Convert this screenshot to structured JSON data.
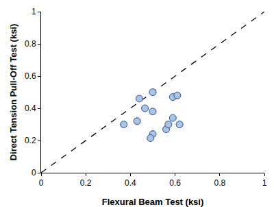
{
  "chart_data": {
    "type": "scatter",
    "xlabel": "Flexural Beam Test (ksi)",
    "ylabel": "Direct Tension Pull-Off Test (ksi)",
    "xlim": [
      0,
      1
    ],
    "ylim": [
      0,
      1
    ],
    "xticks": [
      0,
      0.2,
      0.4,
      0.6,
      0.8,
      1
    ],
    "yticks": [
      0,
      0.2,
      0.4,
      0.6,
      0.8,
      1
    ],
    "grid": false,
    "series": [
      {
        "type": "line",
        "color": "#000000",
        "line_style": "dashed",
        "x": [
          0,
          1
        ],
        "values": [
          0,
          1
        ]
      },
      {
        "type": "scatter",
        "color": "#a9c4eb",
        "marker": "circle",
        "x": [
          0.37,
          0.43,
          0.44,
          0.465,
          0.5,
          0.5,
          0.5,
          0.49,
          0.56,
          0.57,
          0.59,
          0.59,
          0.61,
          0.62
        ],
        "values": [
          0.3,
          0.32,
          0.46,
          0.4,
          0.38,
          0.5,
          0.24,
          0.215,
          0.27,
          0.3,
          0.34,
          0.47,
          0.48,
          0.3
        ]
      }
    ]
  }
}
